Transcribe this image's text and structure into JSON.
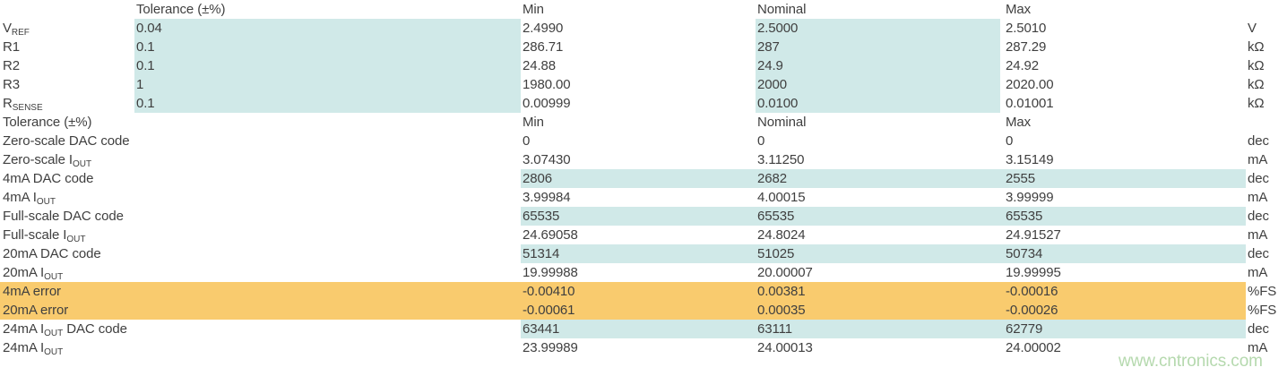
{
  "colors": {
    "highlight_teal": "#d0e9e8",
    "highlight_orange": "#f9cb6e",
    "text": "#3f3f3f",
    "watermark_green": "#b5d9ae",
    "background": "#ffffff"
  },
  "watermark": {
    "text": "www.cntronics.com"
  },
  "table": {
    "sections": [
      {
        "header": {
          "label": "",
          "tolerance": "Tolerance (±%)",
          "min": "Min",
          "nominal": "Nominal",
          "max": "Max",
          "unit": ""
        },
        "rows": [
          {
            "label": [
              {
                "t": "V"
              },
              {
                "t": "REF",
                "sub": true
              }
            ],
            "tolerance": "0.04",
            "min": "2.4990",
            "nominal": "2.5000",
            "max": "2.5010",
            "unit": "V",
            "highlight": "tol-nom"
          },
          {
            "label": [
              {
                "t": "R1"
              }
            ],
            "tolerance": "0.1",
            "min": "286.71",
            "nominal": "287",
            "max": "287.29",
            "unit": "kΩ",
            "highlight": "tol-nom"
          },
          {
            "label": [
              {
                "t": "R2"
              }
            ],
            "tolerance": "0.1",
            "min": "24.88",
            "nominal": "24.9",
            "max": "24.92",
            "unit": "kΩ",
            "highlight": "tol-nom"
          },
          {
            "label": [
              {
                "t": "R3"
              }
            ],
            "tolerance": "1",
            "min": "1980.00",
            "nominal": "2000",
            "max": "2020.00",
            "unit": "kΩ",
            "highlight": "tol-nom"
          },
          {
            "label": [
              {
                "t": "R"
              },
              {
                "t": "SENSE",
                "sub": true
              }
            ],
            "tolerance": "0.1",
            "min": "0.00999",
            "nominal": "0.0100",
            "max": "0.01001",
            "unit": "kΩ",
            "highlight": "tol-nom"
          }
        ]
      },
      {
        "header": {
          "label": "Tolerance (±%)",
          "tolerance": "",
          "min": "Min",
          "nominal": "Nominal",
          "max": "Max",
          "unit": ""
        },
        "rows": [
          {
            "label": [
              {
                "t": "Zero-scale DAC code"
              }
            ],
            "min": "0",
            "nominal": "0",
            "max": "0",
            "unit": "dec",
            "highlight": "none"
          },
          {
            "label": [
              {
                "t": "Zero-scale I"
              },
              {
                "t": "OUT",
                "sub": true
              }
            ],
            "min": "3.07430",
            "nominal": "3.11250",
            "max": "3.15149",
            "unit": "mA",
            "highlight": "none"
          },
          {
            "label": [
              {
                "t": "4mA DAC code"
              }
            ],
            "min": "2806",
            "nominal": "2682",
            "max": "2555",
            "unit": "dec",
            "highlight": "teal-band"
          },
          {
            "label": [
              {
                "t": "4mA I"
              },
              {
                "t": "OUT",
                "sub": true
              }
            ],
            "min": "3.99984",
            "nominal": "4.00015",
            "max": "3.99999",
            "unit": "mA",
            "highlight": "none"
          },
          {
            "label": [
              {
                "t": "Full-scale DAC code"
              }
            ],
            "min": "65535",
            "nominal": "65535",
            "max": "65535",
            "unit": "dec",
            "highlight": "teal-band"
          },
          {
            "label": [
              {
                "t": "Full-scale I"
              },
              {
                "t": "OUT",
                "sub": true
              }
            ],
            "min": "24.69058",
            "nominal": "24.8024",
            "max": "24.91527",
            "unit": "mA",
            "highlight": "none"
          },
          {
            "label": [
              {
                "t": "20mA DAC code"
              }
            ],
            "min": "51314",
            "nominal": "51025",
            "max": "50734",
            "unit": "dec",
            "highlight": "teal-band"
          },
          {
            "label": [
              {
                "t": "20mA I"
              },
              {
                "t": "OUT",
                "sub": true
              }
            ],
            "min": "19.99988",
            "nominal": "20.00007",
            "max": "19.99995",
            "unit": "mA",
            "highlight": "none"
          },
          {
            "label": [
              {
                "t": "4mA error"
              }
            ],
            "min": "-0.00410",
            "nominal": "0.00381",
            "max": "-0.00016",
            "unit": "%FS",
            "highlight": "orange-row"
          },
          {
            "label": [
              {
                "t": "20mA error"
              }
            ],
            "min": "-0.00061",
            "nominal": "0.00035",
            "max": "-0.00026",
            "unit": "%FS",
            "highlight": "orange-row"
          },
          {
            "label": [
              {
                "t": "24mA I"
              },
              {
                "t": "OUT",
                "sub": true
              },
              {
                "t": " DAC code"
              }
            ],
            "min": "63441",
            "nominal": "63111",
            "max": "62779",
            "unit": "dec",
            "highlight": "teal-band"
          },
          {
            "label": [
              {
                "t": "24mA I"
              },
              {
                "t": "OUT",
                "sub": true
              }
            ],
            "min": "23.99989",
            "nominal": "24.00013",
            "max": "24.00002",
            "unit": "mA",
            "highlight": "none"
          }
        ]
      }
    ]
  }
}
